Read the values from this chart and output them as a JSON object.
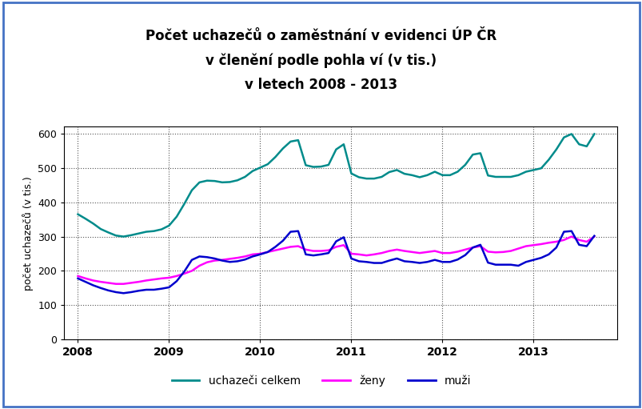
{
  "title_line1": "Počet uchazečů o zaměstnání v evidenci ÚP ČR",
  "title_line2": "v členění podle pohla ví (v tis.)",
  "title_line3": "v letech 2008 - 2013",
  "ylabel": "počet uchazečů (v tis.)",
  "ylim": [
    0,
    620
  ],
  "yticks": [
    0,
    100,
    200,
    300,
    400,
    500,
    600
  ],
  "color_celkem": "#008B8B",
  "color_zeny": "#FF00FF",
  "color_muzi": "#0000CD",
  "legend_celkem": "uchazeči celkem",
  "legend_zeny": "ženy",
  "legend_muzi": "muži",
  "background_color": "#ffffff",
  "border_color": "#4472C4",
  "celkem": [
    365,
    352,
    338,
    322,
    312,
    303,
    300,
    304,
    309,
    314,
    316,
    321,
    332,
    358,
    395,
    435,
    458,
    463,
    462,
    458,
    459,
    464,
    474,
    491,
    501,
    511,
    532,
    557,
    577,
    581,
    508,
    503,
    504,
    509,
    554,
    569,
    484,
    473,
    469,
    469,
    474,
    488,
    494,
    483,
    479,
    473,
    479,
    489,
    479,
    479,
    489,
    509,
    539,
    543,
    478,
    474,
    474,
    474,
    479,
    489,
    494,
    499,
    524,
    554,
    589,
    599,
    569,
    563,
    599
  ],
  "zeny": [
    185,
    178,
    172,
    168,
    165,
    162,
    162,
    165,
    168,
    172,
    175,
    178,
    180,
    185,
    192,
    200,
    215,
    225,
    230,
    232,
    235,
    238,
    242,
    248,
    250,
    255,
    260,
    265,
    270,
    272,
    262,
    258,
    258,
    260,
    270,
    275,
    250,
    248,
    245,
    248,
    252,
    258,
    262,
    258,
    255,
    252,
    255,
    258,
    252,
    252,
    256,
    262,
    268,
    272,
    256,
    254,
    255,
    258,
    265,
    272,
    275,
    278,
    282,
    285,
    290,
    300,
    290,
    285,
    300
  ],
  "muzi": [
    178,
    168,
    158,
    150,
    143,
    138,
    135,
    138,
    142,
    145,
    145,
    148,
    152,
    170,
    198,
    232,
    242,
    240,
    236,
    230,
    226,
    228,
    233,
    242,
    248,
    255,
    270,
    288,
    314,
    316,
    248,
    245,
    248,
    252,
    286,
    298,
    236,
    228,
    226,
    223,
    223,
    230,
    236,
    228,
    226,
    223,
    226,
    232,
    226,
    226,
    233,
    246,
    268,
    276,
    224,
    218,
    218,
    218,
    215,
    226,
    232,
    238,
    248,
    268,
    314,
    316,
    276,
    272,
    302
  ]
}
